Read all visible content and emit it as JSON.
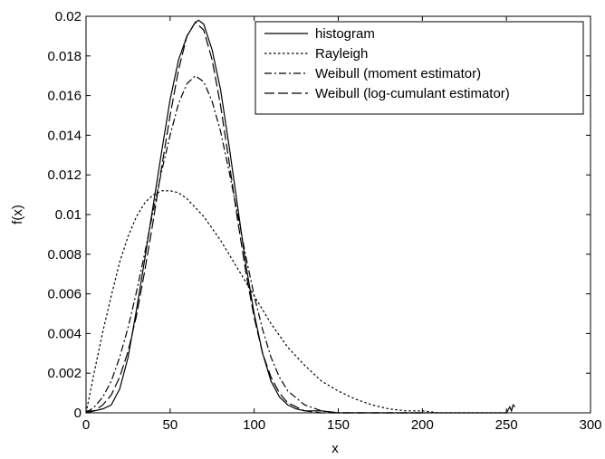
{
  "chart_data": {
    "type": "line",
    "title": "",
    "xlabel": "x",
    "ylabel": "f(x)",
    "xlim": [
      0,
      300
    ],
    "ylim": [
      0,
      0.02
    ],
    "xticks": [
      0,
      50,
      100,
      150,
      200,
      250,
      300
    ],
    "yticks": [
      0,
      0.002,
      0.004,
      0.006,
      0.008,
      0.01,
      0.012,
      0.014,
      0.016,
      0.018,
      0.02
    ],
    "xtick_labels": [
      "0",
      "50",
      "100",
      "150",
      "200",
      "250",
      "300"
    ],
    "ytick_labels": [
      "0",
      "0.002",
      "0.004",
      "0.006",
      "0.008",
      "0.01",
      "0.012",
      "0.014",
      "0.016",
      "0.018",
      "0.02"
    ],
    "grid": false,
    "legend_position": "top-right",
    "series": [
      {
        "name": "histogram",
        "dash": "solid",
        "x": [
          0,
          5,
          10,
          15,
          20,
          25,
          30,
          35,
          40,
          45,
          50,
          55,
          60,
          65,
          67,
          70,
          75,
          80,
          85,
          90,
          95,
          100,
          105,
          110,
          115,
          120,
          125,
          130,
          135,
          140,
          150,
          170,
          200,
          230,
          250,
          252,
          253,
          254,
          255
        ],
        "y": [
          0.0001,
          0.0001,
          0.0002,
          0.0004,
          0.0012,
          0.0028,
          0.0052,
          0.0078,
          0.0105,
          0.0132,
          0.0158,
          0.0178,
          0.019,
          0.0197,
          0.0198,
          0.0196,
          0.0183,
          0.0163,
          0.0135,
          0.0105,
          0.0075,
          0.005,
          0.003,
          0.0016,
          0.0008,
          0.0004,
          0.0002,
          0.0001,
          0.0001,
          0.0001,
          0.0,
          0.0,
          0.0,
          0.0,
          0.0,
          0.0003,
          0.0001,
          0.0004,
          0.0003
        ]
      },
      {
        "name": "Rayleigh",
        "dash": "dotted",
        "x": [
          0,
          5,
          10,
          15,
          20,
          25,
          30,
          35,
          40,
          45,
          50,
          55,
          60,
          70,
          80,
          90,
          100,
          110,
          120,
          130,
          140,
          150,
          160,
          170,
          180,
          190,
          200,
          210,
          220,
          230,
          240,
          250
        ],
        "y": [
          0.0,
          0.0021,
          0.0041,
          0.0059,
          0.0076,
          0.0089,
          0.0099,
          0.0106,
          0.011,
          0.0112,
          0.0112,
          0.0111,
          0.0108,
          0.0099,
          0.0087,
          0.0073,
          0.0059,
          0.0045,
          0.0033,
          0.0024,
          0.0016,
          0.0011,
          0.0007,
          0.0004,
          0.0002,
          0.0001,
          0.0001,
          0.0,
          0.0,
          0.0,
          0.0,
          0.0
        ]
      },
      {
        "name": "Weibull (moment estimator)",
        "dash": "dashdot",
        "x": [
          0,
          5,
          10,
          15,
          20,
          25,
          30,
          35,
          40,
          45,
          50,
          55,
          60,
          65,
          70,
          75,
          80,
          85,
          90,
          95,
          100,
          105,
          110,
          115,
          120,
          130,
          140,
          150,
          170,
          200
        ],
        "y": [
          0.0,
          0.0003,
          0.0008,
          0.0016,
          0.0028,
          0.0043,
          0.0061,
          0.0081,
          0.0102,
          0.0122,
          0.014,
          0.0156,
          0.0166,
          0.017,
          0.0167,
          0.0157,
          0.0142,
          0.0122,
          0.0101,
          0.0079,
          0.0059,
          0.0042,
          0.0028,
          0.0018,
          0.0011,
          0.0004,
          0.0001,
          0.0,
          0.0,
          0.0
        ]
      },
      {
        "name": "Weibull (log-cumulant estimator)",
        "dash": "dashed",
        "x": [
          0,
          5,
          10,
          15,
          20,
          25,
          30,
          35,
          40,
          45,
          50,
          55,
          60,
          65,
          70,
          75,
          80,
          85,
          90,
          95,
          100,
          105,
          110,
          115,
          120,
          130,
          140,
          150,
          170,
          200
        ],
        "y": [
          0.0,
          0.0001,
          0.0004,
          0.0009,
          0.0018,
          0.0031,
          0.0049,
          0.0072,
          0.0097,
          0.0124,
          0.015,
          0.0173,
          0.019,
          0.0197,
          0.0193,
          0.0178,
          0.0155,
          0.0127,
          0.0098,
          0.0071,
          0.0048,
          0.003,
          0.0018,
          0.001,
          0.0005,
          0.0001,
          0.0,
          0.0,
          0.0,
          0.0
        ]
      }
    ]
  }
}
